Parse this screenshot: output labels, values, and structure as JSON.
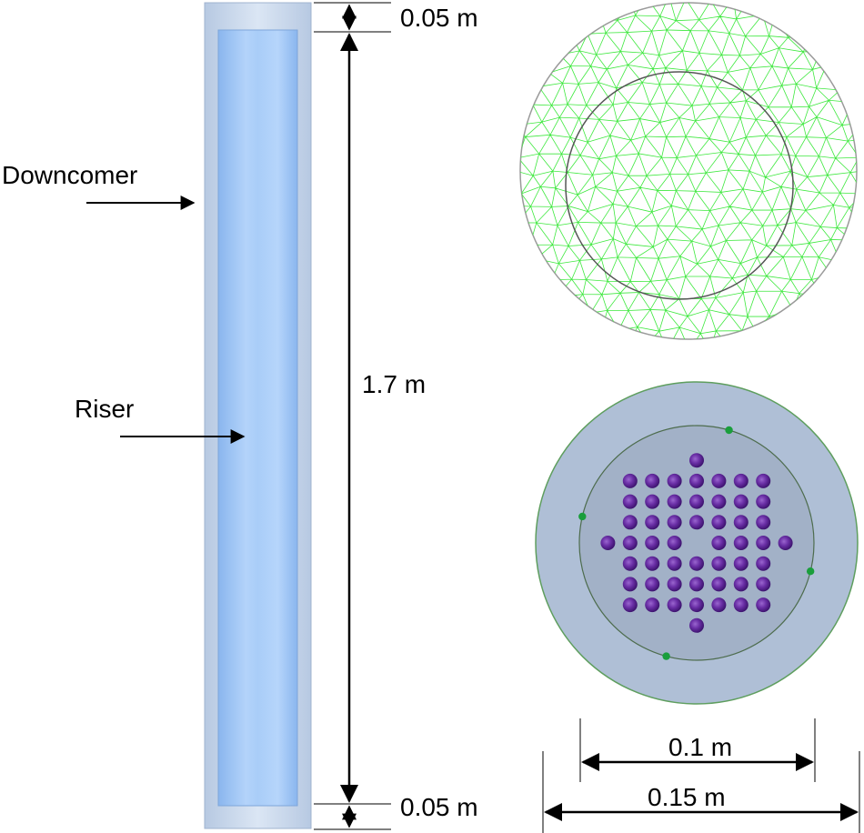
{
  "labels": {
    "downcomer": "Downcomer",
    "riser": "Riser",
    "top_gap": "0.05 m",
    "height": "1.7 m",
    "bottom_gap": "0.05 m",
    "inner_diameter": "0.1 m",
    "outer_diameter": "0.15 m"
  },
  "colors": {
    "outer_tube": "#c9d8ec",
    "riser_light": "#b3d3fa",
    "riser_dark": "#8ab6ee",
    "mesh_line": "#3ee83e",
    "top_view_outer": "#afbfd6",
    "top_view_inner": "#a2b1c7",
    "sparger_hole": "#6a2fa6",
    "probe_dot": "#1a9e3c"
  },
  "sparger": {
    "row_counts": [
      1,
      7,
      7,
      7,
      8,
      7,
      7,
      7,
      1
    ],
    "center_hole_omitted": true
  },
  "probe_count": 4
}
